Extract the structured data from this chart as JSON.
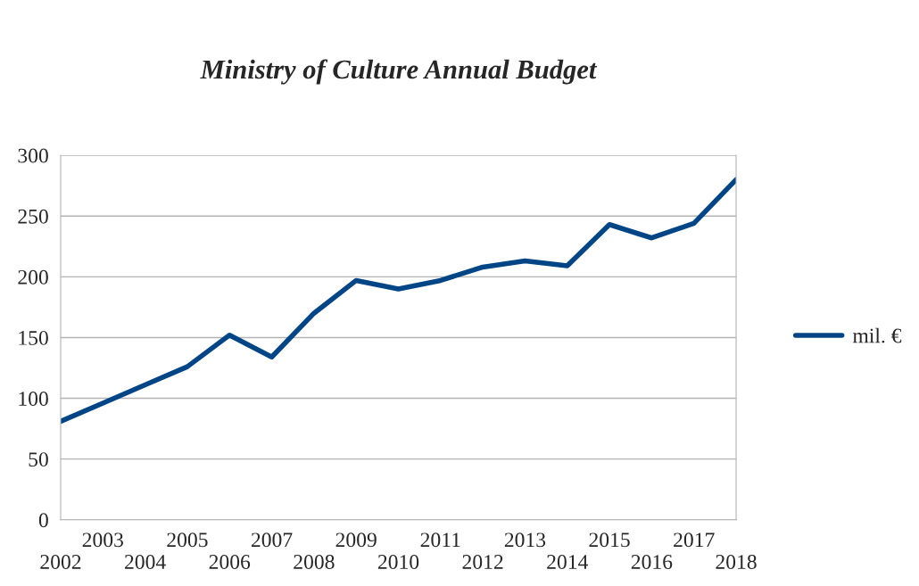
{
  "chart_data": {
    "type": "line",
    "title": "Ministry of Culture Annual Budget",
    "categories": [
      "2002",
      "2003",
      "2004",
      "2005",
      "2006",
      "2007",
      "2008",
      "2009",
      "2010",
      "2011",
      "2012",
      "2013",
      "2014",
      "2015",
      "2016",
      "2017",
      "2018"
    ],
    "series": [
      {
        "name": "mil. €",
        "color": "#004586",
        "values": [
          81,
          96,
          111,
          126,
          152,
          134,
          170,
          197,
          190,
          197,
          208,
          213,
          209,
          243,
          232,
          244,
          280
        ]
      }
    ],
    "ylim": [
      0,
      300
    ],
    "yticks": [
      0,
      50,
      100,
      150,
      200,
      250,
      300
    ],
    "grid": "y",
    "legend": "right",
    "marker": "none",
    "line_style": "solid"
  }
}
